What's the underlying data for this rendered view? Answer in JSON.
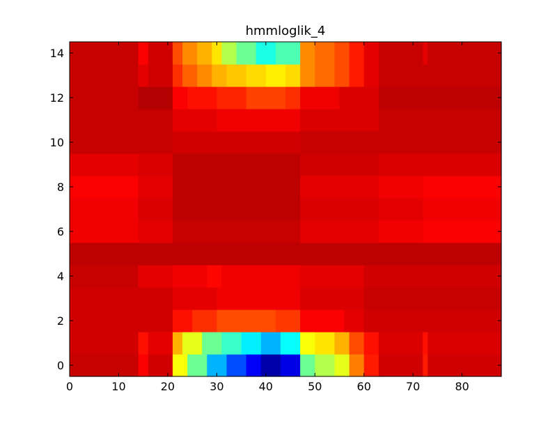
{
  "chart_data": {
    "type": "heatmap",
    "title": "hmmloglik_4",
    "xlabel": "",
    "ylabel": "",
    "colormap": "jet",
    "x_count": 88,
    "y_count": 15,
    "xlim": [
      0,
      88
    ],
    "ylim": [
      -0.5,
      14.5
    ],
    "x_ticks": [
      "0",
      "10",
      "20",
      "30",
      "40",
      "50",
      "60",
      "70",
      "80"
    ],
    "y_ticks": [
      "0",
      "2",
      "4",
      "6",
      "8",
      "10",
      "12",
      "14"
    ],
    "grid": false,
    "legend": "none",
    "rows": [
      {
        "y": 0,
        "segments": [
          {
            "x": [
              0,
              14
            ],
            "level": 0.93
          },
          {
            "x": [
              14,
              16
            ],
            "level": 0.88
          },
          {
            "x": [
              16,
              21
            ],
            "level": 0.92
          },
          {
            "x": [
              21,
              24
            ],
            "level": 0.62
          },
          {
            "x": [
              24,
              28
            ],
            "level": 0.48
          },
          {
            "x": [
              28,
              32
            ],
            "level": 0.3
          },
          {
            "x": [
              32,
              36
            ],
            "level": 0.2
          },
          {
            "x": [
              36,
              39
            ],
            "level": 0.12
          },
          {
            "x": [
              39,
              43
            ],
            "level": 0.04
          },
          {
            "x": [
              43,
              47
            ],
            "level": 0.1
          },
          {
            "x": [
              47,
              50
            ],
            "level": 0.48
          },
          {
            "x": [
              50,
              54
            ],
            "level": 0.55
          },
          {
            "x": [
              54,
              57
            ],
            "level": 0.6
          },
          {
            "x": [
              57,
              60
            ],
            "level": 0.75
          },
          {
            "x": [
              60,
              63
            ],
            "level": 0.85
          },
          {
            "x": [
              63,
              72
            ],
            "level": 0.92
          },
          {
            "x": [
              72,
              73
            ],
            "level": 0.85
          },
          {
            "x": [
              73,
              88
            ],
            "level": 0.92
          }
        ]
      },
      {
        "y": 1,
        "segments": [
          {
            "x": [
              0,
              14
            ],
            "level": 0.92
          },
          {
            "x": [
              14,
              16
            ],
            "level": 0.86
          },
          {
            "x": [
              16,
              21
            ],
            "level": 0.9
          },
          {
            "x": [
              21,
              23
            ],
            "level": 0.7
          },
          {
            "x": [
              23,
              27
            ],
            "level": 0.6
          },
          {
            "x": [
              27,
              31
            ],
            "level": 0.48
          },
          {
            "x": [
              31,
              35
            ],
            "level": 0.43
          },
          {
            "x": [
              35,
              39
            ],
            "level": 0.36
          },
          {
            "x": [
              39,
              43
            ],
            "level": 0.3
          },
          {
            "x": [
              43,
              47
            ],
            "level": 0.38
          },
          {
            "x": [
              47,
              50
            ],
            "level": 0.62
          },
          {
            "x": [
              50,
              54
            ],
            "level": 0.65
          },
          {
            "x": [
              54,
              57
            ],
            "level": 0.7
          },
          {
            "x": [
              57,
              60
            ],
            "level": 0.8
          },
          {
            "x": [
              60,
              63
            ],
            "level": 0.86
          },
          {
            "x": [
              63,
              72
            ],
            "level": 0.91
          },
          {
            "x": [
              72,
              73
            ],
            "level": 0.86
          },
          {
            "x": [
              73,
              88
            ],
            "level": 0.91
          }
        ]
      },
      {
        "y": 2,
        "segments": [
          {
            "x": [
              0,
              21
            ],
            "level": 0.92
          },
          {
            "x": [
              21,
              25
            ],
            "level": 0.86
          },
          {
            "x": [
              25,
              30
            ],
            "level": 0.83
          },
          {
            "x": [
              30,
              36
            ],
            "level": 0.8
          },
          {
            "x": [
              36,
              42
            ],
            "level": 0.8
          },
          {
            "x": [
              42,
              47
            ],
            "level": 0.82
          },
          {
            "x": [
              47,
              56
            ],
            "level": 0.88
          },
          {
            "x": [
              56,
              60
            ],
            "level": 0.9
          },
          {
            "x": [
              60,
              88
            ],
            "level": 0.92
          }
        ]
      },
      {
        "y": 3,
        "segments": [
          {
            "x": [
              0,
              21
            ],
            "level": 0.92
          },
          {
            "x": [
              21,
              30
            ],
            "level": 0.9
          },
          {
            "x": [
              30,
              47
            ],
            "level": 0.89
          },
          {
            "x": [
              47,
              60
            ],
            "level": 0.91
          },
          {
            "x": [
              60,
              88
            ],
            "level": 0.93
          }
        ]
      },
      {
        "y": 4,
        "segments": [
          {
            "x": [
              0,
              14
            ],
            "level": 0.93
          },
          {
            "x": [
              14,
              21
            ],
            "level": 0.9
          },
          {
            "x": [
              21,
              28
            ],
            "level": 0.89
          },
          {
            "x": [
              28,
              31
            ],
            "level": 0.87
          },
          {
            "x": [
              31,
              47
            ],
            "level": 0.89
          },
          {
            "x": [
              47,
              60
            ],
            "level": 0.9
          },
          {
            "x": [
              60,
              88
            ],
            "level": 0.92
          }
        ]
      },
      {
        "y": 5,
        "segments": [
          {
            "x": [
              0,
              88
            ],
            "level": 0.94
          }
        ]
      },
      {
        "y": 6,
        "segments": [
          {
            "x": [
              0,
              4
            ],
            "level": 0.89
          },
          {
            "x": [
              4,
              14
            ],
            "level": 0.89
          },
          {
            "x": [
              14,
              21
            ],
            "level": 0.9
          },
          {
            "x": [
              21,
              47
            ],
            "level": 0.93
          },
          {
            "x": [
              47,
              63
            ],
            "level": 0.9
          },
          {
            "x": [
              63,
              72
            ],
            "level": 0.89
          },
          {
            "x": [
              72,
              88
            ],
            "level": 0.88
          }
        ]
      },
      {
        "y": 7,
        "segments": [
          {
            "x": [
              0,
              14
            ],
            "level": 0.89
          },
          {
            "x": [
              14,
              21
            ],
            "level": 0.91
          },
          {
            "x": [
              21,
              47
            ],
            "level": 0.94
          },
          {
            "x": [
              47,
              63
            ],
            "level": 0.91
          },
          {
            "x": [
              63,
              72
            ],
            "level": 0.9
          },
          {
            "x": [
              72,
              88
            ],
            "level": 0.89
          }
        ]
      },
      {
        "y": 8,
        "segments": [
          {
            "x": [
              0,
              14
            ],
            "level": 0.88
          },
          {
            "x": [
              14,
              21
            ],
            "level": 0.9
          },
          {
            "x": [
              21,
              47
            ],
            "level": 0.94
          },
          {
            "x": [
              47,
              63
            ],
            "level": 0.9
          },
          {
            "x": [
              63,
              72
            ],
            "level": 0.89
          },
          {
            "x": [
              72,
              88
            ],
            "level": 0.88
          }
        ]
      },
      {
        "y": 9,
        "segments": [
          {
            "x": [
              0,
              14
            ],
            "level": 0.9
          },
          {
            "x": [
              14,
              21
            ],
            "level": 0.91
          },
          {
            "x": [
              21,
              47
            ],
            "level": 0.94
          },
          {
            "x": [
              47,
              63
            ],
            "level": 0.92
          },
          {
            "x": [
              63,
              88
            ],
            "level": 0.91
          }
        ]
      },
      {
        "y": 10,
        "segments": [
          {
            "x": [
              0,
              21
            ],
            "level": 0.93
          },
          {
            "x": [
              21,
              47
            ],
            "level": 0.92
          },
          {
            "x": [
              47,
              88
            ],
            "level": 0.93
          }
        ]
      },
      {
        "y": 11,
        "segments": [
          {
            "x": [
              0,
              21
            ],
            "level": 0.93
          },
          {
            "x": [
              21,
              30
            ],
            "level": 0.9
          },
          {
            "x": [
              30,
              47
            ],
            "level": 0.89
          },
          {
            "x": [
              47,
              63
            ],
            "level": 0.91
          },
          {
            "x": [
              63,
              88
            ],
            "level": 0.93
          }
        ]
      },
      {
        "y": 12,
        "segments": [
          {
            "x": [
              0,
              14
            ],
            "level": 0.93
          },
          {
            "x": [
              14,
              21
            ],
            "level": 0.95
          },
          {
            "x": [
              21,
              24
            ],
            "level": 0.88
          },
          {
            "x": [
              24,
              30
            ],
            "level": 0.86
          },
          {
            "x": [
              30,
              36
            ],
            "level": 0.84
          },
          {
            "x": [
              36,
              44
            ],
            "level": 0.81
          },
          {
            "x": [
              44,
              47
            ],
            "level": 0.83
          },
          {
            "x": [
              47,
              55
            ],
            "level": 0.89
          },
          {
            "x": [
              55,
              63
            ],
            "level": 0.91
          },
          {
            "x": [
              63,
              88
            ],
            "level": 0.94
          }
        ]
      },
      {
        "y": 13,
        "segments": [
          {
            "x": [
              0,
              14
            ],
            "level": 0.93
          },
          {
            "x": [
              14,
              16
            ],
            "level": 0.9
          },
          {
            "x": [
              16,
              21
            ],
            "level": 0.92
          },
          {
            "x": [
              21,
              23
            ],
            "level": 0.83
          },
          {
            "x": [
              23,
              26
            ],
            "level": 0.78
          },
          {
            "x": [
              26,
              29
            ],
            "level": 0.74
          },
          {
            "x": [
              29,
              32
            ],
            "level": 0.7
          },
          {
            "x": [
              32,
              36
            ],
            "level": 0.68
          },
          {
            "x": [
              36,
              40
            ],
            "level": 0.66
          },
          {
            "x": [
              40,
              44
            ],
            "level": 0.64
          },
          {
            "x": [
              44,
              47
            ],
            "level": 0.66
          },
          {
            "x": [
              47,
              50
            ],
            "level": 0.74
          },
          {
            "x": [
              50,
              54
            ],
            "level": 0.77
          },
          {
            "x": [
              54,
              57
            ],
            "level": 0.8
          },
          {
            "x": [
              57,
              60
            ],
            "level": 0.85
          },
          {
            "x": [
              60,
              63
            ],
            "level": 0.9
          },
          {
            "x": [
              63,
              88
            ],
            "level": 0.93
          }
        ]
      },
      {
        "y": 14,
        "segments": [
          {
            "x": [
              0,
              14
            ],
            "level": 0.93
          },
          {
            "x": [
              14,
              16
            ],
            "level": 0.88
          },
          {
            "x": [
              16,
              21
            ],
            "level": 0.92
          },
          {
            "x": [
              21,
              23
            ],
            "level": 0.8
          },
          {
            "x": [
              23,
              26
            ],
            "level": 0.74
          },
          {
            "x": [
              26,
              29
            ],
            "level": 0.7
          },
          {
            "x": [
              29,
              31
            ],
            "level": 0.65
          },
          {
            "x": [
              31,
              34
            ],
            "level": 0.55
          },
          {
            "x": [
              34,
              38
            ],
            "level": 0.48
          },
          {
            "x": [
              38,
              42
            ],
            "level": 0.4
          },
          {
            "x": [
              42,
              47
            ],
            "level": 0.45
          },
          {
            "x": [
              47,
              50
            ],
            "level": 0.74
          },
          {
            "x": [
              50,
              54
            ],
            "level": 0.77
          },
          {
            "x": [
              54,
              57
            ],
            "level": 0.8
          },
          {
            "x": [
              57,
              60
            ],
            "level": 0.85
          },
          {
            "x": [
              60,
              63
            ],
            "level": 0.9
          },
          {
            "x": [
              63,
              72
            ],
            "level": 0.93
          },
          {
            "x": [
              72,
              73
            ],
            "level": 0.9
          },
          {
            "x": [
              73,
              88
            ],
            "level": 0.93
          }
        ]
      }
    ]
  }
}
